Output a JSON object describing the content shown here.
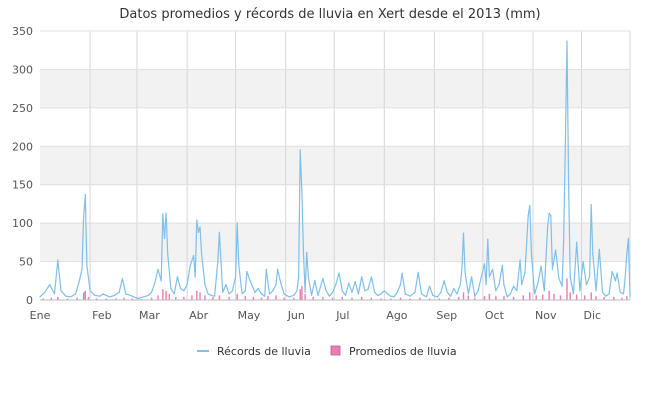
{
  "chart_data": {
    "type": "bar",
    "title": "Datos promedios y récords de lluvia en Xert desde el  2013 (mm)",
    "xlabel": "",
    "ylabel": "",
    "ylim": [
      0,
      350
    ],
    "yticks": [
      0,
      50,
      100,
      150,
      200,
      250,
      300,
      350
    ],
    "grid": true,
    "legend_position": "bottom",
    "months": [
      "Ene",
      "Feb",
      "Mar",
      "Abr",
      "May",
      "Jun",
      "Jul",
      "Ago",
      "Sep",
      "Oct",
      "Nov",
      "Dic"
    ],
    "x_range_days": [
      1,
      366
    ],
    "series": [
      {
        "name": "Récords de lluvia",
        "color": "#7fbfe9",
        "style": "line",
        "points": [
          [
            1,
            4
          ],
          [
            4,
            10
          ],
          [
            7,
            20
          ],
          [
            10,
            8
          ],
          [
            12,
            52
          ],
          [
            14,
            12
          ],
          [
            17,
            5
          ],
          [
            20,
            4
          ],
          [
            23,
            8
          ],
          [
            25,
            22
          ],
          [
            27,
            40
          ],
          [
            28,
            108
          ],
          [
            29,
            137
          ],
          [
            30,
            45
          ],
          [
            32,
            12
          ],
          [
            35,
            6
          ],
          [
            38,
            5
          ],
          [
            40,
            8
          ],
          [
            42,
            6
          ],
          [
            44,
            4
          ],
          [
            47,
            6
          ],
          [
            50,
            10
          ],
          [
            52,
            28
          ],
          [
            54,
            8
          ],
          [
            57,
            6
          ],
          [
            59,
            4
          ],
          [
            62,
            2
          ],
          [
            65,
            4
          ],
          [
            68,
            6
          ],
          [
            70,
            10
          ],
          [
            72,
            22
          ],
          [
            74,
            40
          ],
          [
            76,
            25
          ],
          [
            77,
            112
          ],
          [
            78,
            80
          ],
          [
            79,
            113
          ],
          [
            80,
            60
          ],
          [
            82,
            15
          ],
          [
            84,
            8
          ],
          [
            86,
            30
          ],
          [
            88,
            15
          ],
          [
            90,
            12
          ],
          [
            92,
            20
          ],
          [
            94,
            45
          ],
          [
            96,
            58
          ],
          [
            97,
            30
          ],
          [
            98,
            104
          ],
          [
            99,
            88
          ],
          [
            100,
            95
          ],
          [
            101,
            60
          ],
          [
            103,
            20
          ],
          [
            105,
            8
          ],
          [
            107,
            6
          ],
          [
            109,
            5
          ],
          [
            111,
            50
          ],
          [
            112,
            88
          ],
          [
            114,
            10
          ],
          [
            116,
            20
          ],
          [
            118,
            8
          ],
          [
            120,
            12
          ],
          [
            122,
            30
          ],
          [
            123,
            100
          ],
          [
            124,
            45
          ],
          [
            126,
            8
          ],
          [
            128,
            12
          ],
          [
            129,
            37
          ],
          [
            131,
            25
          ],
          [
            134,
            10
          ],
          [
            136,
            15
          ],
          [
            138,
            8
          ],
          [
            140,
            5
          ],
          [
            141,
            40
          ],
          [
            143,
            8
          ],
          [
            145,
            12
          ],
          [
            147,
            20
          ],
          [
            148,
            40
          ],
          [
            150,
            22
          ],
          [
            152,
            8
          ],
          [
            155,
            4
          ],
          [
            158,
            6
          ],
          [
            160,
            12
          ],
          [
            161,
            30
          ],
          [
            162,
            195
          ],
          [
            163,
            140
          ],
          [
            164,
            60
          ],
          [
            165,
            10
          ],
          [
            166,
            62
          ],
          [
            167,
            30
          ],
          [
            169,
            6
          ],
          [
            171,
            25
          ],
          [
            173,
            6
          ],
          [
            176,
            28
          ],
          [
            178,
            12
          ],
          [
            180,
            5
          ],
          [
            182,
            10
          ],
          [
            184,
            20
          ],
          [
            186,
            35
          ],
          [
            188,
            12
          ],
          [
            190,
            6
          ],
          [
            192,
            22
          ],
          [
            194,
            10
          ],
          [
            196,
            24
          ],
          [
            198,
            8
          ],
          [
            200,
            30
          ],
          [
            202,
            12
          ],
          [
            204,
            14
          ],
          [
            206,
            30
          ],
          [
            208,
            10
          ],
          [
            210,
            6
          ],
          [
            212,
            8
          ],
          [
            214,
            12
          ],
          [
            216,
            8
          ],
          [
            218,
            5
          ],
          [
            220,
            4
          ],
          [
            222,
            10
          ],
          [
            224,
            20
          ],
          [
            225,
            35
          ],
          [
            227,
            8
          ],
          [
            230,
            5
          ],
          [
            233,
            10
          ],
          [
            235,
            36
          ],
          [
            237,
            8
          ],
          [
            240,
            4
          ],
          [
            242,
            18
          ],
          [
            244,
            6
          ],
          [
            247,
            4
          ],
          [
            249,
            10
          ],
          [
            251,
            25
          ],
          [
            253,
            10
          ],
          [
            255,
            5
          ],
          [
            257,
            15
          ],
          [
            259,
            8
          ],
          [
            261,
            20
          ],
          [
            262,
            40
          ],
          [
            263,
            87
          ],
          [
            264,
            35
          ],
          [
            266,
            8
          ],
          [
            268,
            30
          ],
          [
            270,
            5
          ],
          [
            272,
            12
          ],
          [
            274,
            30
          ],
          [
            276,
            47
          ],
          [
            277,
            20
          ],
          [
            278,
            79
          ],
          [
            279,
            30
          ],
          [
            281,
            40
          ],
          [
            283,
            12
          ],
          [
            285,
            20
          ],
          [
            287,
            45
          ],
          [
            288,
            20
          ],
          [
            290,
            4
          ],
          [
            292,
            8
          ],
          [
            294,
            18
          ],
          [
            296,
            12
          ],
          [
            298,
            52
          ],
          [
            299,
            20
          ],
          [
            301,
            35
          ],
          [
            303,
            110
          ],
          [
            304,
            123
          ],
          [
            305,
            60
          ],
          [
            307,
            8
          ],
          [
            309,
            22
          ],
          [
            311,
            44
          ],
          [
            313,
            12
          ],
          [
            315,
            95
          ],
          [
            316,
            113
          ],
          [
            317,
            110
          ],
          [
            318,
            40
          ],
          [
            320,
            65
          ],
          [
            322,
            28
          ],
          [
            324,
            18
          ],
          [
            325,
            80
          ],
          [
            326,
            200
          ],
          [
            327,
            337
          ],
          [
            328,
            150
          ],
          [
            329,
            30
          ],
          [
            331,
            8
          ],
          [
            333,
            75
          ],
          [
            335,
            12
          ],
          [
            337,
            50
          ],
          [
            339,
            20
          ],
          [
            341,
            30
          ],
          [
            342,
            124
          ],
          [
            343,
            60
          ],
          [
            345,
            12
          ],
          [
            347,
            66
          ],
          [
            349,
            10
          ],
          [
            351,
            5
          ],
          [
            353,
            8
          ],
          [
            355,
            37
          ],
          [
            357,
            25
          ],
          [
            358,
            35
          ],
          [
            360,
            10
          ],
          [
            362,
            8
          ],
          [
            363,
            30
          ],
          [
            364,
            60
          ],
          [
            365,
            80
          ],
          [
            366,
            5
          ]
        ]
      },
      {
        "name": "Promedios de lluvia",
        "color": "#ea7fb5",
        "style": "bars",
        "points": [
          [
            3,
            2
          ],
          [
            8,
            3
          ],
          [
            12,
            4
          ],
          [
            18,
            2
          ],
          [
            24,
            3
          ],
          [
            28,
            10
          ],
          [
            29,
            12
          ],
          [
            31,
            4
          ],
          [
            36,
            2
          ],
          [
            42,
            2
          ],
          [
            48,
            2
          ],
          [
            53,
            3
          ],
          [
            58,
            2
          ],
          [
            64,
            1
          ],
          [
            70,
            3
          ],
          [
            74,
            6
          ],
          [
            77,
            14
          ],
          [
            79,
            12
          ],
          [
            81,
            8
          ],
          [
            85,
            4
          ],
          [
            90,
            4
          ],
          [
            95,
            6
          ],
          [
            98,
            12
          ],
          [
            100,
            10
          ],
          [
            103,
            6
          ],
          [
            108,
            4
          ],
          [
            112,
            6
          ],
          [
            118,
            4
          ],
          [
            123,
            8
          ],
          [
            128,
            5
          ],
          [
            133,
            4
          ],
          [
            138,
            3
          ],
          [
            142,
            5
          ],
          [
            147,
            6
          ],
          [
            152,
            3
          ],
          [
            158,
            3
          ],
          [
            162,
            14
          ],
          [
            163,
            18
          ],
          [
            165,
            8
          ],
          [
            170,
            4
          ],
          [
            176,
            4
          ],
          [
            182,
            3
          ],
          [
            188,
            4
          ],
          [
            194,
            3
          ],
          [
            200,
            4
          ],
          [
            206,
            3
          ],
          [
            212,
            2
          ],
          [
            218,
            2
          ],
          [
            224,
            3
          ],
          [
            230,
            2
          ],
          [
            236,
            3
          ],
          [
            242,
            2
          ],
          [
            248,
            2
          ],
          [
            254,
            3
          ],
          [
            260,
            4
          ],
          [
            263,
            10
          ],
          [
            266,
            6
          ],
          [
            270,
            3
          ],
          [
            276,
            5
          ],
          [
            279,
            8
          ],
          [
            283,
            5
          ],
          [
            288,
            5
          ],
          [
            294,
            4
          ],
          [
            300,
            6
          ],
          [
            304,
            10
          ],
          [
            308,
            6
          ],
          [
            312,
            7
          ],
          [
            316,
            12
          ],
          [
            319,
            8
          ],
          [
            323,
            6
          ],
          [
            327,
            28
          ],
          [
            329,
            10
          ],
          [
            333,
            7
          ],
          [
            338,
            6
          ],
          [
            342,
            10
          ],
          [
            345,
            5
          ],
          [
            350,
            4
          ],
          [
            356,
            4
          ],
          [
            361,
            3
          ],
          [
            364,
            5
          ]
        ]
      }
    ]
  }
}
